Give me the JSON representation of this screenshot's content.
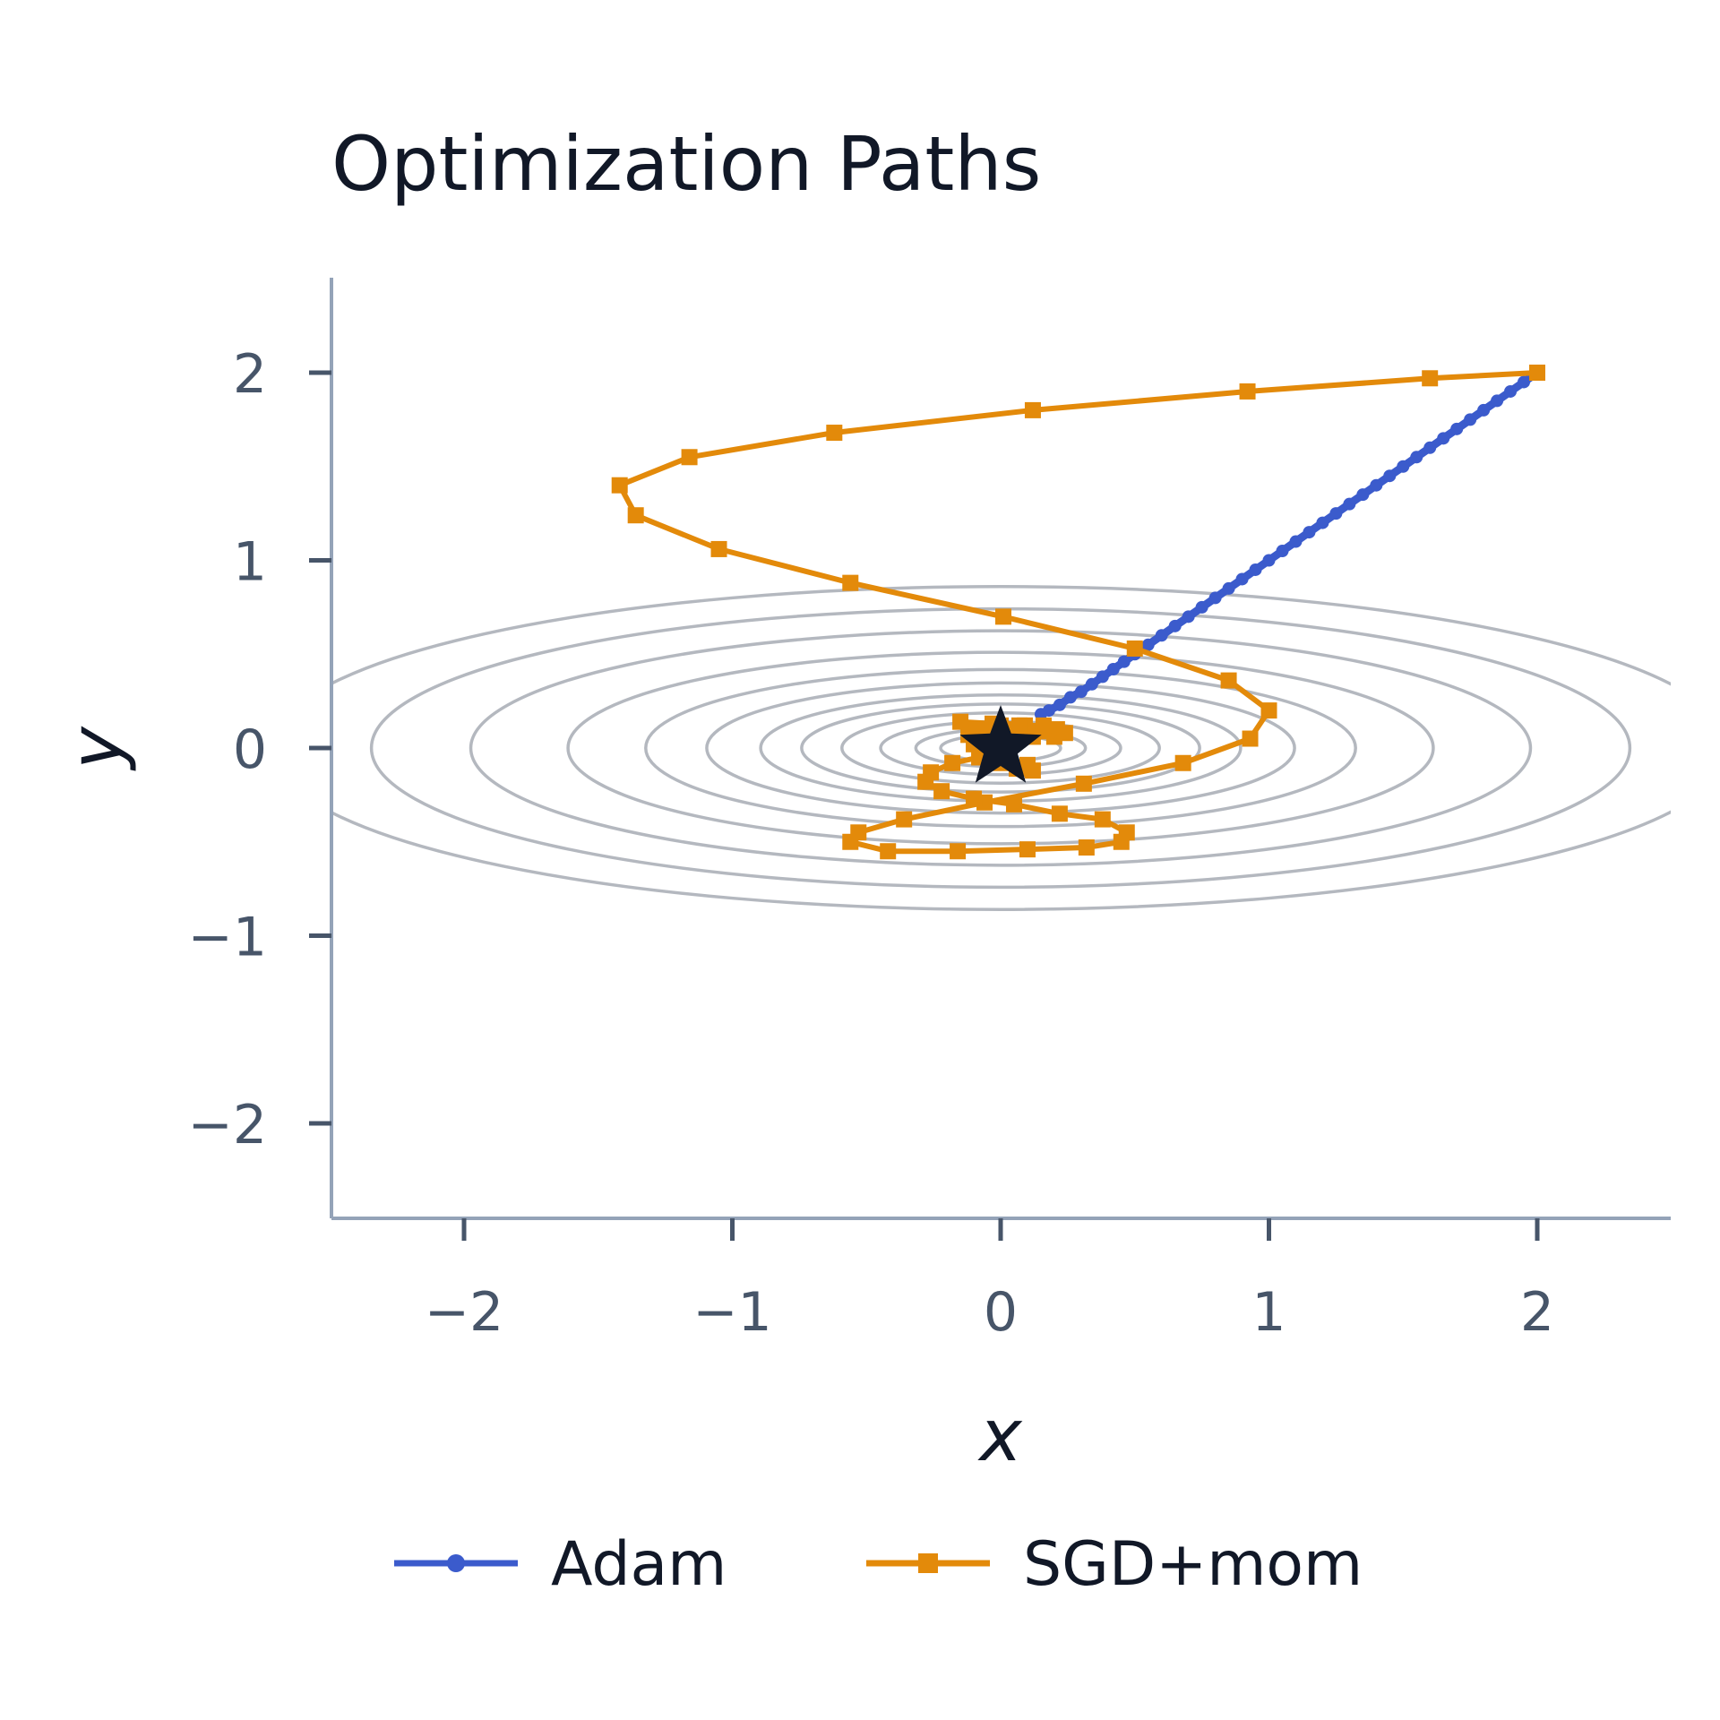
{
  "chart_data": {
    "type": "line",
    "title": "Optimization Paths",
    "xlabel": "x",
    "ylabel": "y",
    "xlim": [
      -2.5,
      2.5
    ],
    "ylim": [
      -2.5,
      2.5
    ],
    "x_ticks": [
      -2,
      -1,
      0,
      1,
      2
    ],
    "y_ticks": [
      -2,
      -1,
      0,
      1,
      2
    ],
    "x_tick_labels": [
      "−2",
      "−1",
      "0",
      "1",
      "2"
    ],
    "y_tick_labels": [
      "−2",
      "−1",
      "0",
      "1",
      "2"
    ],
    "grid": false,
    "legend_position": "bottom",
    "contours": {
      "function": "x^2 + 10*y^2",
      "levels": [
        0.05,
        0.1,
        0.2,
        0.35,
        0.55,
        0.8,
        1.2,
        1.75,
        2.6,
        3.9,
        5.5,
        7.4
      ],
      "color": "#b4b8bf"
    },
    "minimum": {
      "x": 0,
      "y": 0,
      "color": "#111827"
    },
    "series": [
      {
        "name": "Adam",
        "color": "#3b5bcc",
        "marker": "circle",
        "points": [
          [
            2.0,
            2.0
          ],
          [
            1.95,
            1.95
          ],
          [
            1.9,
            1.9
          ],
          [
            1.85,
            1.85
          ],
          [
            1.8,
            1.8
          ],
          [
            1.75,
            1.75
          ],
          [
            1.7,
            1.7
          ],
          [
            1.65,
            1.65
          ],
          [
            1.6,
            1.6
          ],
          [
            1.55,
            1.55
          ],
          [
            1.5,
            1.5
          ],
          [
            1.45,
            1.45
          ],
          [
            1.4,
            1.4
          ],
          [
            1.35,
            1.35
          ],
          [
            1.3,
            1.3
          ],
          [
            1.25,
            1.25
          ],
          [
            1.2,
            1.2
          ],
          [
            1.15,
            1.15
          ],
          [
            1.1,
            1.1
          ],
          [
            1.05,
            1.05
          ],
          [
            1.0,
            1.0
          ],
          [
            0.95,
            0.95
          ],
          [
            0.9,
            0.9
          ],
          [
            0.85,
            0.85
          ],
          [
            0.8,
            0.8
          ],
          [
            0.75,
            0.75
          ],
          [
            0.7,
            0.7
          ],
          [
            0.65,
            0.65
          ],
          [
            0.6,
            0.6
          ],
          [
            0.55,
            0.55
          ],
          [
            0.5,
            0.5
          ],
          [
            0.46,
            0.46
          ],
          [
            0.42,
            0.42
          ],
          [
            0.38,
            0.38
          ],
          [
            0.34,
            0.34
          ],
          [
            0.3,
            0.3
          ],
          [
            0.26,
            0.27
          ],
          [
            0.22,
            0.23
          ],
          [
            0.18,
            0.2
          ],
          [
            0.15,
            0.18
          ]
        ]
      },
      {
        "name": "SGD+mom",
        "color": "#e38a0a",
        "marker": "square",
        "points": [
          [
            2.0,
            2.0
          ],
          [
            1.6,
            1.97
          ],
          [
            0.92,
            1.9
          ],
          [
            0.12,
            1.8
          ],
          [
            -0.62,
            1.68
          ],
          [
            -1.16,
            1.55
          ],
          [
            -1.42,
            1.4
          ],
          [
            -1.36,
            1.24
          ],
          [
            -1.05,
            1.06
          ],
          [
            -0.56,
            0.88
          ],
          [
            0.01,
            0.7
          ],
          [
            0.5,
            0.53
          ],
          [
            0.85,
            0.36
          ],
          [
            1.0,
            0.2
          ],
          [
            0.93,
            0.05
          ],
          [
            0.68,
            -0.08
          ],
          [
            0.31,
            -0.19
          ],
          [
            -0.06,
            -0.29
          ],
          [
            -0.36,
            -0.38
          ],
          [
            -0.53,
            -0.45
          ],
          [
            -0.56,
            -0.5
          ],
          [
            -0.42,
            -0.55
          ],
          [
            -0.16,
            -0.55
          ],
          [
            0.1,
            -0.54
          ],
          [
            0.32,
            -0.53
          ],
          [
            0.45,
            -0.5
          ],
          [
            0.47,
            -0.45
          ],
          [
            0.38,
            -0.38
          ],
          [
            0.22,
            -0.35
          ],
          [
            0.05,
            -0.3
          ],
          [
            -0.1,
            -0.27
          ],
          [
            -0.22,
            -0.23
          ],
          [
            -0.28,
            -0.18
          ],
          [
            -0.26,
            -0.13
          ],
          [
            -0.18,
            -0.08
          ],
          [
            -0.08,
            -0.05
          ],
          [
            0.02,
            -0.06
          ],
          [
            0.1,
            -0.09
          ],
          [
            0.12,
            -0.12
          ],
          [
            0.06,
            -0.11
          ],
          [
            0.0,
            -0.08
          ],
          [
            -0.06,
            -0.03
          ],
          [
            -0.1,
            0.02
          ],
          [
            -0.12,
            0.07
          ],
          [
            -0.08,
            0.1
          ],
          [
            0.0,
            0.12
          ],
          [
            0.09,
            0.12
          ],
          [
            0.16,
            0.11
          ],
          [
            0.21,
            0.1
          ],
          [
            0.24,
            0.08
          ],
          [
            0.2,
            0.06
          ],
          [
            0.12,
            0.06
          ],
          [
            0.04,
            0.07
          ],
          [
            -0.04,
            0.09
          ],
          [
            -0.15,
            0.14
          ],
          [
            -0.03,
            0.13
          ],
          [
            0.07,
            0.12
          ],
          [
            0.16,
            0.12
          ],
          [
            0.05,
            0.1
          ],
          [
            0.0,
            0.0
          ]
        ]
      }
    ]
  }
}
